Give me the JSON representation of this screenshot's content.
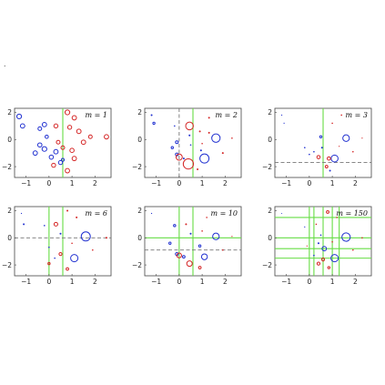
{
  "chart_data": [
    {
      "type": "scatter",
      "label": "m = 1",
      "xlim": [
        -1.5,
        2.7
      ],
      "ylim": [
        -2.8,
        2.3
      ],
      "xticks": [
        -1,
        0,
        1,
        2
      ],
      "yticks": [
        -2,
        0,
        2
      ],
      "splits": [
        {
          "dir": "v",
          "value": 0.6,
          "color": "#66dd44",
          "style": "solid"
        }
      ],
      "points": [
        {
          "x": -1.3,
          "y": 1.7,
          "r": 2.6,
          "c": "blue"
        },
        {
          "x": -1.15,
          "y": 1.0,
          "r": 2.4,
          "c": "blue"
        },
        {
          "x": -0.2,
          "y": 1.1,
          "r": 2.4,
          "c": "blue"
        },
        {
          "x": -0.4,
          "y": 0.8,
          "r": 2.0,
          "c": "blue"
        },
        {
          "x": -0.1,
          "y": 0.2,
          "r": 1.8,
          "c": "blue"
        },
        {
          "x": -0.4,
          "y": -0.4,
          "r": 2.3,
          "c": "blue"
        },
        {
          "x": -0.2,
          "y": -0.7,
          "r": 2.6,
          "c": "blue"
        },
        {
          "x": -0.6,
          "y": -1.0,
          "r": 2.4,
          "c": "blue"
        },
        {
          "x": 0.1,
          "y": -1.3,
          "r": 2.3,
          "c": "blue"
        },
        {
          "x": 0.5,
          "y": -1.7,
          "r": 2.2,
          "c": "blue"
        },
        {
          "x": 0.3,
          "y": -0.9,
          "r": 2.4,
          "c": "blue"
        },
        {
          "x": 0.6,
          "y": -1.5,
          "r": 1.6,
          "c": "blue"
        },
        {
          "x": 0.3,
          "y": 1.0,
          "r": 2.2,
          "c": "red"
        },
        {
          "x": 0.8,
          "y": 2.0,
          "r": 2.6,
          "c": "red"
        },
        {
          "x": 1.1,
          "y": 1.6,
          "r": 2.4,
          "c": "red"
        },
        {
          "x": 1.3,
          "y": 0.6,
          "r": 2.4,
          "c": "red"
        },
        {
          "x": 0.9,
          "y": 0.9,
          "r": 2.2,
          "c": "red"
        },
        {
          "x": 1.5,
          "y": -0.2,
          "r": 2.4,
          "c": "red"
        },
        {
          "x": 1.0,
          "y": -0.8,
          "r": 2.3,
          "c": "red"
        },
        {
          "x": 1.1,
          "y": -1.4,
          "r": 2.4,
          "c": "red"
        },
        {
          "x": 0.8,
          "y": -2.3,
          "r": 2.4,
          "c": "red"
        },
        {
          "x": 0.4,
          "y": -0.2,
          "r": 2.0,
          "c": "red"
        },
        {
          "x": 2.5,
          "y": 0.2,
          "r": 2.4,
          "c": "red"
        },
        {
          "x": 1.8,
          "y": 0.2,
          "r": 2.0,
          "c": "red"
        },
        {
          "x": 0.2,
          "y": -1.9,
          "r": 2.2,
          "c": "red"
        },
        {
          "x": 0.6,
          "y": -0.6,
          "r": 2.0,
          "c": "red"
        }
      ]
    },
    {
      "type": "scatter",
      "label": "m = 2",
      "xlim": [
        -1.5,
        2.7
      ],
      "ylim": [
        -2.8,
        2.3
      ],
      "xticks": [
        -1,
        0,
        1,
        2
      ],
      "yticks": [
        -2,
        0,
        2
      ],
      "splits": [
        {
          "dir": "v",
          "value": 0.6,
          "color": "#66dd44",
          "style": "solid"
        },
        {
          "dir": "v",
          "value": 0.0,
          "color": "#777777",
          "style": "dashed"
        }
      ],
      "points": [
        {
          "x": -1.2,
          "y": 1.8,
          "r": 1.0,
          "c": "blue"
        },
        {
          "x": -1.1,
          "y": 1.2,
          "r": 1.2,
          "c": "blue"
        },
        {
          "x": -0.2,
          "y": 1.0,
          "r": 0.8,
          "c": "blue"
        },
        {
          "x": -0.1,
          "y": -0.2,
          "r": 1.5,
          "c": "blue"
        },
        {
          "x": -0.3,
          "y": -0.6,
          "r": 1.2,
          "c": "blue"
        },
        {
          "x": -0.1,
          "y": -1.1,
          "r": 1.6,
          "c": "blue"
        },
        {
          "x": 0.2,
          "y": -1.4,
          "r": 1.0,
          "c": "blue"
        },
        {
          "x": 0.45,
          "y": 0.3,
          "r": 1.0,
          "c": "blue"
        },
        {
          "x": 1.1,
          "y": -1.4,
          "r": 5.0,
          "c": "blue"
        },
        {
          "x": 1.6,
          "y": 0.1,
          "r": 4.6,
          "c": "blue"
        },
        {
          "x": 0.95,
          "y": -0.8,
          "r": 1.0,
          "c": "blue"
        },
        {
          "x": 0.5,
          "y": -0.4,
          "r": 0.8,
          "c": "blue"
        },
        {
          "x": 0.45,
          "y": 1.0,
          "r": 4.2,
          "c": "red"
        },
        {
          "x": 0.0,
          "y": -1.3,
          "r": 3.4,
          "c": "red"
        },
        {
          "x": 0.4,
          "y": -1.8,
          "r": 5.6,
          "c": "red"
        },
        {
          "x": 1.3,
          "y": 1.6,
          "r": 1.0,
          "c": "red"
        },
        {
          "x": 0.9,
          "y": 0.6,
          "r": 1.0,
          "c": "red"
        },
        {
          "x": 1.3,
          "y": 0.5,
          "r": 1.0,
          "c": "red"
        },
        {
          "x": 1.0,
          "y": -0.3,
          "r": 0.8,
          "c": "red"
        },
        {
          "x": 2.3,
          "y": 0.1,
          "r": 0.8,
          "c": "red"
        },
        {
          "x": 1.9,
          "y": -1.0,
          "r": 1.0,
          "c": "red"
        },
        {
          "x": 0.8,
          "y": -2.2,
          "r": 1.0,
          "c": "red"
        }
      ]
    },
    {
      "type": "scatter",
      "label": "m = 3",
      "xlim": [
        -1.5,
        2.7
      ],
      "ylim": [
        -2.8,
        2.3
      ],
      "xticks": [
        -1,
        0,
        1,
        2
      ],
      "yticks": [
        -2,
        0,
        2
      ],
      "splits": [
        {
          "dir": "v",
          "value": 0.6,
          "color": "#66dd44",
          "style": "solid"
        },
        {
          "dir": "h",
          "value": -1.7,
          "color": "#777777",
          "style": "dashed"
        }
      ],
      "points": [
        {
          "x": -1.2,
          "y": 1.8,
          "r": 0.6,
          "c": "blue"
        },
        {
          "x": -1.1,
          "y": 1.2,
          "r": 0.6,
          "c": "blue"
        },
        {
          "x": -0.2,
          "y": -0.6,
          "r": 0.8,
          "c": "blue"
        },
        {
          "x": 0.0,
          "y": -1.1,
          "r": 0.8,
          "c": "blue"
        },
        {
          "x": 0.2,
          "y": -0.9,
          "r": 0.8,
          "c": "blue"
        },
        {
          "x": 0.5,
          "y": 0.2,
          "r": 1.2,
          "c": "blue"
        },
        {
          "x": 0.55,
          "y": -0.6,
          "r": 1.0,
          "c": "blue"
        },
        {
          "x": 1.1,
          "y": -1.4,
          "r": 3.8,
          "c": "blue"
        },
        {
          "x": 1.6,
          "y": 0.1,
          "r": 3.6,
          "c": "blue"
        },
        {
          "x": 0.9,
          "y": -2.3,
          "r": 1.0,
          "c": "blue"
        },
        {
          "x": 1.0,
          "y": 1.2,
          "r": 0.8,
          "c": "red"
        },
        {
          "x": 1.4,
          "y": 1.8,
          "r": 0.8,
          "c": "red"
        },
        {
          "x": 0.4,
          "y": -1.3,
          "r": 1.8,
          "c": "red"
        },
        {
          "x": 0.85,
          "y": -1.4,
          "r": 1.8,
          "c": "red"
        },
        {
          "x": 0.75,
          "y": -2.0,
          "r": 1.4,
          "c": "red"
        },
        {
          "x": 2.3,
          "y": 0.1,
          "r": 0.6,
          "c": "red"
        },
        {
          "x": 1.9,
          "y": -0.9,
          "r": 0.8,
          "c": "red"
        },
        {
          "x": 1.3,
          "y": -0.5,
          "r": 0.6,
          "c": "red"
        }
      ]
    },
    {
      "type": "scatter",
      "label": "m = 6",
      "xlim": [
        -1.5,
        2.7
      ],
      "ylim": [
        -2.8,
        2.3
      ],
      "xticks": [
        -1,
        0,
        1,
        2
      ],
      "yticks": [
        -2,
        0,
        2
      ],
      "splits": [
        {
          "dir": "v",
          "value": 0.0,
          "color": "#66dd44",
          "style": "solid"
        },
        {
          "dir": "v",
          "value": 0.6,
          "color": "#66dd44",
          "style": "solid"
        },
        {
          "dir": "h",
          "value": 0.0,
          "color": "#777777",
          "style": "dashed"
        }
      ],
      "points": [
        {
          "x": -1.2,
          "y": 1.8,
          "r": 0.6,
          "c": "blue"
        },
        {
          "x": -1.1,
          "y": 1.0,
          "r": 1.0,
          "c": "blue"
        },
        {
          "x": -0.2,
          "y": 0.9,
          "r": 0.8,
          "c": "blue"
        },
        {
          "x": 0.5,
          "y": 0.3,
          "r": 1.0,
          "c": "blue"
        },
        {
          "x": 0.0,
          "y": -0.7,
          "r": 0.8,
          "c": "blue"
        },
        {
          "x": 0.25,
          "y": -1.5,
          "r": 0.8,
          "c": "blue"
        },
        {
          "x": 1.1,
          "y": -1.5,
          "r": 4.0,
          "c": "blue"
        },
        {
          "x": 1.6,
          "y": 0.1,
          "r": 5.0,
          "c": "blue"
        },
        {
          "x": 0.3,
          "y": 1.0,
          "r": 2.0,
          "c": "red"
        },
        {
          "x": 0.8,
          "y": 2.0,
          "r": 1.0,
          "c": "red"
        },
        {
          "x": 1.2,
          "y": 1.5,
          "r": 1.0,
          "c": "red"
        },
        {
          "x": 0.5,
          "y": -1.2,
          "r": 1.6,
          "c": "red"
        },
        {
          "x": 0.8,
          "y": -2.3,
          "r": 1.4,
          "c": "red"
        },
        {
          "x": 2.5,
          "y": 0.0,
          "r": 1.0,
          "c": "red"
        },
        {
          "x": 1.9,
          "y": -0.9,
          "r": 0.8,
          "c": "red"
        },
        {
          "x": 1.0,
          "y": -0.4,
          "r": 0.8,
          "c": "red"
        },
        {
          "x": 0.0,
          "y": -1.9,
          "r": 1.2,
          "c": "red"
        }
      ]
    },
    {
      "type": "scatter",
      "label": "m = 10",
      "xlim": [
        -1.5,
        2.7
      ],
      "ylim": [
        -2.8,
        2.3
      ],
      "xticks": [
        -1,
        0,
        1,
        2
      ],
      "yticks": [
        -2,
        0,
        2
      ],
      "splits": [
        {
          "dir": "v",
          "value": 0.0,
          "color": "#66dd44",
          "style": "solid"
        },
        {
          "dir": "v",
          "value": 0.6,
          "color": "#66dd44",
          "style": "solid"
        },
        {
          "dir": "h",
          "value": 0.0,
          "color": "#66dd44",
          "style": "solid"
        },
        {
          "dir": "h",
          "value": -0.9,
          "color": "#777777",
          "style": "dashed"
        }
      ],
      "points": [
        {
          "x": -1.2,
          "y": 1.8,
          "r": 0.6,
          "c": "blue"
        },
        {
          "x": -0.2,
          "y": 0.9,
          "r": 1.2,
          "c": "blue"
        },
        {
          "x": -0.4,
          "y": -0.4,
          "r": 1.2,
          "c": "blue"
        },
        {
          "x": -0.1,
          "y": -1.2,
          "r": 1.6,
          "c": "blue"
        },
        {
          "x": 0.2,
          "y": -1.4,
          "r": 1.4,
          "c": "blue"
        },
        {
          "x": 0.5,
          "y": 0.3,
          "r": 1.0,
          "c": "blue"
        },
        {
          "x": 1.1,
          "y": -1.4,
          "r": 3.2,
          "c": "blue"
        },
        {
          "x": 1.6,
          "y": 0.1,
          "r": 3.6,
          "c": "blue"
        },
        {
          "x": 0.9,
          "y": -0.6,
          "r": 1.2,
          "c": "blue"
        },
        {
          "x": 0.3,
          "y": 1.0,
          "r": 1.0,
          "c": "red"
        },
        {
          "x": 1.2,
          "y": 1.5,
          "r": 0.8,
          "c": "red"
        },
        {
          "x": 0.0,
          "y": -1.3,
          "r": 2.6,
          "c": "red"
        },
        {
          "x": 0.45,
          "y": -1.9,
          "r": 3.0,
          "c": "red"
        },
        {
          "x": 0.9,
          "y": -2.2,
          "r": 1.4,
          "c": "red"
        },
        {
          "x": 2.3,
          "y": 0.1,
          "r": 0.6,
          "c": "red"
        },
        {
          "x": 1.9,
          "y": -0.9,
          "r": 0.8,
          "c": "red"
        },
        {
          "x": 1.0,
          "y": 0.5,
          "r": 0.8,
          "c": "red"
        }
      ]
    },
    {
      "type": "scatter",
      "label": "m = 150",
      "xlim": [
        -1.5,
        2.7
      ],
      "ylim": [
        -2.8,
        2.3
      ],
      "xticks": [
        -1,
        0,
        1,
        2
      ],
      "yticks": [
        -2,
        0,
        2
      ],
      "splits": [
        {
          "dir": "v",
          "value": 0.0,
          "color": "#66dd44",
          "style": "solid"
        },
        {
          "dir": "v",
          "value": 0.2,
          "color": "#66dd44",
          "style": "solid"
        },
        {
          "dir": "v",
          "value": 0.6,
          "color": "#66dd44",
          "style": "solid"
        },
        {
          "dir": "v",
          "value": 1.0,
          "color": "#66dd44",
          "style": "solid"
        },
        {
          "dir": "v",
          "value": 1.3,
          "color": "#66dd44",
          "style": "solid"
        },
        {
          "dir": "h",
          "value": 0.0,
          "color": "#66dd44",
          "style": "solid"
        },
        {
          "dir": "h",
          "value": -0.8,
          "color": "#66dd44",
          "style": "solid"
        },
        {
          "dir": "h",
          "value": -1.5,
          "color": "#66dd44",
          "style": "solid"
        },
        {
          "dir": "h",
          "value": 1.5,
          "color": "#66dd44",
          "style": "solid"
        }
      ],
      "points": [
        {
          "x": -1.2,
          "y": 1.8,
          "r": 0.5,
          "c": "blue"
        },
        {
          "x": -0.2,
          "y": 0.8,
          "r": 0.6,
          "c": "blue"
        },
        {
          "x": 0.5,
          "y": 0.2,
          "r": 0.8,
          "c": "blue"
        },
        {
          "x": 0.2,
          "y": -1.3,
          "r": 0.8,
          "c": "blue"
        },
        {
          "x": 0.65,
          "y": -0.8,
          "r": 2.4,
          "c": "blue"
        },
        {
          "x": 1.1,
          "y": -1.5,
          "r": 4.0,
          "c": "blue"
        },
        {
          "x": 1.6,
          "y": 0.05,
          "r": 4.6,
          "c": "blue"
        },
        {
          "x": 0.4,
          "y": -0.4,
          "r": 1.0,
          "c": "blue"
        },
        {
          "x": 0.3,
          "y": 1.0,
          "r": 0.8,
          "c": "red"
        },
        {
          "x": 0.8,
          "y": 1.9,
          "r": 1.4,
          "c": "red"
        },
        {
          "x": 1.2,
          "y": 1.5,
          "r": 0.8,
          "c": "red"
        },
        {
          "x": 0.6,
          "y": -1.6,
          "r": 1.6,
          "c": "red"
        },
        {
          "x": 0.4,
          "y": -1.9,
          "r": 1.6,
          "c": "red"
        },
        {
          "x": 0.85,
          "y": -2.2,
          "r": 1.2,
          "c": "red"
        },
        {
          "x": 2.3,
          "y": 0.0,
          "r": 0.8,
          "c": "red"
        },
        {
          "x": 1.9,
          "y": -0.9,
          "r": 0.8,
          "c": "red"
        },
        {
          "x": 1.0,
          "y": -0.3,
          "r": 0.8,
          "c": "red"
        },
        {
          "x": -0.1,
          "y": -0.6,
          "r": 0.6,
          "c": "red"
        }
      ]
    }
  ],
  "colors": {
    "blue": "#1f2fd0",
    "red": "#d42424",
    "frame": "#444444"
  }
}
